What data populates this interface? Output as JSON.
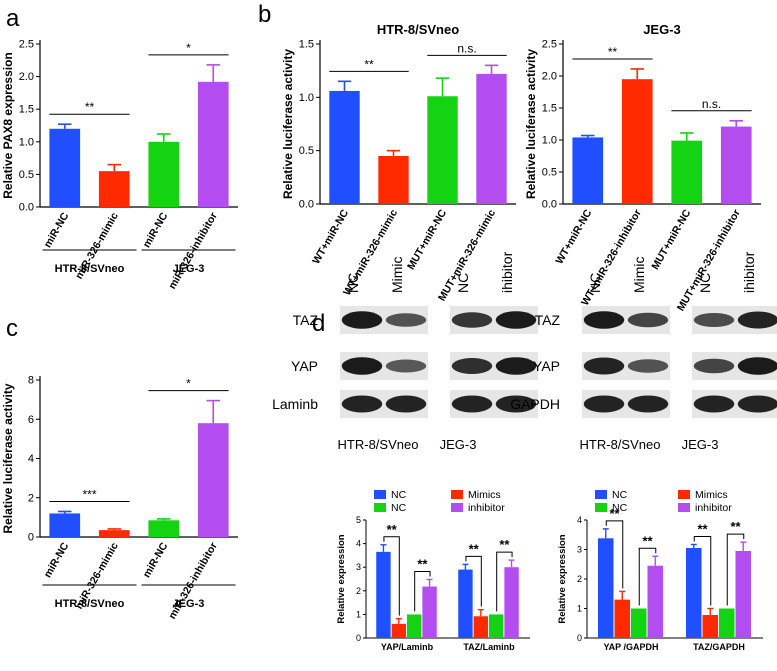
{
  "panel_letters": [
    "a",
    "b",
    "c",
    "d"
  ],
  "colors": {
    "blue": "#1f4fff",
    "red": "#ff2a00",
    "green": "#13d313",
    "purple": "#b44df0",
    "band": "#141414"
  },
  "chart_data": [
    {
      "id": "a",
      "type": "bar",
      "ylabel": "Relative PAX8 expression",
      "ylim": [
        0,
        2.5
      ],
      "yticks": [
        0.0,
        0.5,
        1.0,
        1.5,
        2.0,
        2.5
      ],
      "categories": [
        "miR-NC",
        "miR-326-mimic",
        "miR-NC",
        "miR-326-inhibitor"
      ],
      "values": [
        1.2,
        0.55,
        1.0,
        1.92
      ],
      "errors": [
        0.07,
        0.1,
        0.12,
        0.26
      ],
      "colors": [
        "#1f4fff",
        "#ff2a00",
        "#13d313",
        "#b44df0"
      ],
      "groups": [
        {
          "label": "HTR-8/SVneo",
          "from": 0,
          "to": 1
        },
        {
          "label": "JEG-3",
          "from": 2,
          "to": 3
        }
      ],
      "significance": [
        {
          "from": 0,
          "to": 1,
          "label": "**"
        },
        {
          "from": 2,
          "to": 3,
          "label": "*"
        }
      ]
    },
    {
      "id": "b1",
      "type": "bar",
      "title": "HTR-8/SVneo",
      "ylabel": "Relative luciferase activity",
      "ylim": [
        0,
        1.5
      ],
      "yticks": [
        0.0,
        0.5,
        1.0,
        1.5
      ],
      "categories": [
        "WT+miR-NC",
        "WT+miR-326-mimic",
        "MUT+miR-NC",
        "MUT+miR-326-mimic"
      ],
      "values": [
        1.06,
        0.45,
        1.01,
        1.22
      ],
      "errors": [
        0.09,
        0.05,
        0.17,
        0.08
      ],
      "colors": [
        "#1f4fff",
        "#ff2a00",
        "#13d313",
        "#b44df0"
      ],
      "significance": [
        {
          "from": 0,
          "to": 1,
          "label": "**"
        },
        {
          "from": 2,
          "to": 3,
          "label": "n.s."
        }
      ]
    },
    {
      "id": "b2",
      "type": "bar",
      "title": "JEG-3",
      "ylabel": "Relative luciferase activity",
      "ylim": [
        0,
        2.5
      ],
      "yticks": [
        0.0,
        0.5,
        1.0,
        1.5,
        2.0,
        2.5
      ],
      "categories": [
        "WT+miR-NC",
        "WT+miR-326-inhibitor",
        "MUT+miR-NC",
        "MUT+miR-326-inhibitor"
      ],
      "values": [
        1.04,
        1.95,
        0.99,
        1.21
      ],
      "errors": [
        0.03,
        0.16,
        0.12,
        0.09
      ],
      "colors": [
        "#1f4fff",
        "#ff2a00",
        "#13d313",
        "#b44df0"
      ],
      "significance": [
        {
          "from": 0,
          "to": 1,
          "label": "**"
        },
        {
          "from": 2,
          "to": 3,
          "label": "n.s."
        }
      ]
    },
    {
      "id": "c",
      "type": "bar",
      "ylabel": "Relative luciferase activity",
      "ylim": [
        0,
        8
      ],
      "yticks": [
        0,
        2,
        4,
        6,
        8
      ],
      "categories": [
        "miR-NC",
        "miR-326-mimic",
        "miR-NC",
        "miR-326-inhibitor"
      ],
      "values": [
        1.2,
        0.35,
        0.85,
        5.8
      ],
      "errors": [
        0.1,
        0.06,
        0.07,
        1.15
      ],
      "colors": [
        "#1f4fff",
        "#ff2a00",
        "#13d313",
        "#b44df0"
      ],
      "groups": [
        {
          "label": "HTR-8/SVneo",
          "from": 0,
          "to": 1
        },
        {
          "label": "JEG-3",
          "from": 2,
          "to": 3
        }
      ],
      "significance": [
        {
          "from": 0,
          "to": 1,
          "label": "***"
        },
        {
          "from": 2,
          "to": 3,
          "label": "*"
        }
      ]
    },
    {
      "id": "d1",
      "type": "bar",
      "ylabel": "Relative expression",
      "ylim": [
        0,
        5
      ],
      "yticks": [
        0,
        1,
        2,
        3,
        4,
        5
      ],
      "categories": [
        "YAP/Laminb",
        "TAZ/Laminb"
      ],
      "legend": [
        "NC",
        "Mimics",
        "NC",
        "inhibitor"
      ],
      "legend_position": "top",
      "series": [
        {
          "name": "NC",
          "values": [
            3.65,
            2.9
          ],
          "errors": [
            0.3,
            0.22
          ],
          "color": "#1f4fff"
        },
        {
          "name": "Mimics",
          "values": [
            0.6,
            0.92
          ],
          "errors": [
            0.22,
            0.28
          ],
          "color": "#ff2a00"
        },
        {
          "name": "NC",
          "values": [
            1.0,
            1.0
          ],
          "errors": [
            0,
            0
          ],
          "color": "#13d313"
        },
        {
          "name": "inhibitor",
          "values": [
            2.18,
            3.0
          ],
          "errors": [
            0.3,
            0.3
          ],
          "color": "#b44df0"
        }
      ],
      "significance": [
        {
          "cat": 0,
          "from": 0,
          "to": 1,
          "label": "**"
        },
        {
          "cat": 0,
          "from": 2,
          "to": 3,
          "label": "**"
        },
        {
          "cat": 1,
          "from": 0,
          "to": 1,
          "label": "**"
        },
        {
          "cat": 1,
          "from": 2,
          "to": 3,
          "label": "**"
        }
      ]
    },
    {
      "id": "d2",
      "type": "bar",
      "ylabel": "Relative expression",
      "ylim": [
        0,
        4
      ],
      "yticks": [
        0,
        1,
        2,
        3,
        4
      ],
      "categories": [
        "YAP /GAPDH",
        "TAZ/GAPDH"
      ],
      "legend": [
        "NC",
        "Mimics",
        "NC",
        "inhibitor"
      ],
      "legend_position": "top",
      "series": [
        {
          "name": "NC",
          "values": [
            3.38,
            3.05
          ],
          "errors": [
            0.32,
            0.12
          ],
          "color": "#1f4fff"
        },
        {
          "name": "Mimics",
          "values": [
            1.3,
            0.78
          ],
          "errors": [
            0.28,
            0.22
          ],
          "color": "#ff2a00"
        },
        {
          "name": "NC",
          "values": [
            1.0,
            1.0
          ],
          "errors": [
            0,
            0
          ],
          "color": "#13d313"
        },
        {
          "name": "inhibitor",
          "values": [
            2.45,
            2.95
          ],
          "errors": [
            0.32,
            0.3
          ],
          "color": "#b44df0"
        }
      ],
      "significance": [
        {
          "cat": 0,
          "from": 0,
          "to": 1,
          "label": "**"
        },
        {
          "cat": 0,
          "from": 2,
          "to": 3,
          "label": "**"
        },
        {
          "cat": 1,
          "from": 0,
          "to": 1,
          "label": "**"
        },
        {
          "cat": 1,
          "from": 2,
          "to": 3,
          "label": "**"
        }
      ]
    }
  ],
  "western_blots": [
    {
      "id": "blot-left",
      "column_labels": [
        "NC",
        "Mimic",
        "NC",
        "ihibitor"
      ],
      "rows": [
        {
          "label": "TAZ",
          "intensities": [
            0.95,
            0.55,
            0.75,
            0.95
          ]
        },
        {
          "label": "YAP",
          "intensities": [
            0.95,
            0.5,
            0.8,
            0.95
          ]
        },
        {
          "label": "Laminb",
          "intensities": [
            0.9,
            0.9,
            0.9,
            0.9
          ]
        }
      ],
      "group_labels": [
        "HTR-8/SVneo",
        "JEG-3"
      ]
    },
    {
      "id": "blot-right",
      "column_labels": [
        "NC",
        "Mimic",
        "NC",
        "ihibitor"
      ],
      "rows": [
        {
          "label": "TAZ",
          "intensities": [
            0.95,
            0.65,
            0.6,
            0.9
          ]
        },
        {
          "label": "YAP",
          "intensities": [
            0.9,
            0.55,
            0.65,
            0.95
          ]
        },
        {
          "label": "GAPDH",
          "intensities": [
            0.9,
            0.9,
            0.9,
            0.9
          ]
        }
      ],
      "group_labels": [
        "HTR-8/SVneo",
        "JEG-3"
      ]
    }
  ]
}
